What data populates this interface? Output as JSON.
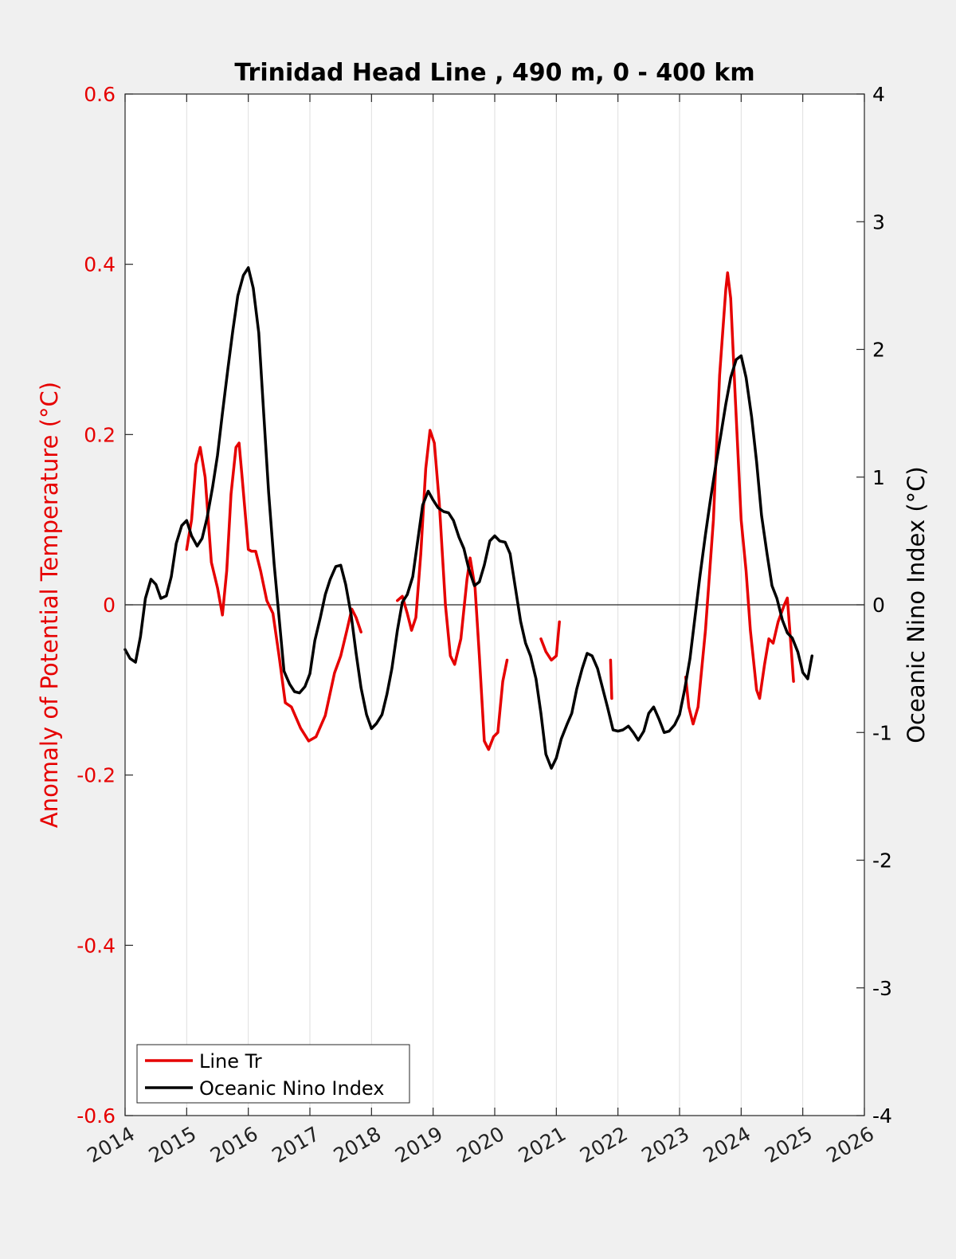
{
  "chart_data": {
    "type": "line",
    "title": "Trinidad Head Line , 490 m, 0 - 400 km",
    "xlabel": "",
    "xlim": [
      2014,
      2026
    ],
    "x_ticks": [
      "2014",
      "2015",
      "2016",
      "2017",
      "2018",
      "2019",
      "2020",
      "2021",
      "2022",
      "2023",
      "2024",
      "2025",
      "2026"
    ],
    "y_left": {
      "label": "Anomaly of Potential Temperature (°C)",
      "lim": [
        -0.6,
        0.6
      ],
      "ticks": [
        "0.6",
        "0.4",
        "0.2",
        "0",
        "-0.2",
        "-0.4",
        "-0.6"
      ],
      "color": "#e60000"
    },
    "y_right": {
      "label": "Oceanic Nino Index (°C)",
      "lim": [
        -4,
        4
      ],
      "ticks": [
        "4",
        "3",
        "2",
        "1",
        "0",
        "-1",
        "-2",
        "-3",
        "-4"
      ],
      "color": "#000000"
    },
    "grid": "vertical",
    "zero_line": true,
    "legend": {
      "placement": "bottom-left",
      "entries": [
        "Line Tr",
        "Oceanic Nino Index"
      ]
    },
    "series": [
      {
        "name": "Line Tr",
        "axis": "left",
        "color": "#e60000",
        "segments": [
          [
            [
              2015.0,
              0.065
            ],
            [
              2015.08,
              0.1
            ],
            [
              2015.15,
              0.165
            ],
            [
              2015.22,
              0.185
            ],
            [
              2015.3,
              0.15
            ],
            [
              2015.4,
              0.05
            ],
            [
              2015.5,
              0.02
            ],
            [
              2015.58,
              -0.012
            ],
            [
              2015.65,
              0.04
            ],
            [
              2015.72,
              0.13
            ],
            [
              2015.8,
              0.185
            ],
            [
              2015.85,
              0.19
            ],
            [
              2015.9,
              0.15
            ],
            [
              2016.0,
              0.065
            ],
            [
              2016.05,
              0.063
            ],
            [
              2016.12,
              0.063
            ],
            [
              2016.2,
              0.04
            ],
            [
              2016.3,
              0.005
            ],
            [
              2016.4,
              -0.01
            ],
            [
              2016.5,
              -0.06
            ],
            [
              2016.6,
              -0.115
            ],
            [
              2016.7,
              -0.12
            ],
            [
              2016.85,
              -0.145
            ],
            [
              2016.98,
              -0.16
            ],
            [
              2017.1,
              -0.155
            ],
            [
              2017.25,
              -0.13
            ],
            [
              2017.4,
              -0.08
            ],
            [
              2017.5,
              -0.06
            ],
            [
              2017.6,
              -0.03
            ],
            [
              2017.68,
              -0.005
            ],
            [
              2017.75,
              -0.015
            ],
            [
              2017.83,
              -0.032
            ]
          ],
          [
            [
              2018.42,
              0.005
            ],
            [
              2018.5,
              0.01
            ],
            [
              2018.58,
              -0.01
            ],
            [
              2018.65,
              -0.03
            ],
            [
              2018.72,
              -0.015
            ],
            [
              2018.8,
              0.06
            ],
            [
              2018.88,
              0.16
            ],
            [
              2018.95,
              0.205
            ],
            [
              2019.02,
              0.19
            ],
            [
              2019.1,
              0.12
            ],
            [
              2019.2,
              0.0
            ],
            [
              2019.28,
              -0.06
            ],
            [
              2019.35,
              -0.07
            ],
            [
              2019.45,
              -0.04
            ],
            [
              2019.55,
              0.03
            ],
            [
              2019.6,
              0.055
            ],
            [
              2019.68,
              0.02
            ],
            [
              2019.75,
              -0.06
            ],
            [
              2019.83,
              -0.16
            ],
            [
              2019.9,
              -0.17
            ],
            [
              2019.98,
              -0.155
            ],
            [
              2020.05,
              -0.15
            ],
            [
              2020.13,
              -0.09
            ],
            [
              2020.2,
              -0.065
            ]
          ],
          [
            [
              2020.75,
              -0.04
            ],
            [
              2020.83,
              -0.055
            ],
            [
              2020.92,
              -0.065
            ],
            [
              2021.0,
              -0.06
            ],
            [
              2021.05,
              -0.02
            ]
          ],
          [
            [
              2021.88,
              -0.065
            ],
            [
              2021.9,
              -0.11
            ]
          ],
          [
            [
              2023.1,
              -0.085
            ],
            [
              2023.15,
              -0.12
            ],
            [
              2023.22,
              -0.14
            ],
            [
              2023.3,
              -0.12
            ],
            [
              2023.42,
              -0.03
            ],
            [
              2023.55,
              0.1
            ],
            [
              2023.65,
              0.27
            ],
            [
              2023.75,
              0.37
            ],
            [
              2023.78,
              0.39
            ],
            [
              2023.83,
              0.36
            ],
            [
              2023.9,
              0.25
            ],
            [
              2024.0,
              0.1
            ],
            [
              2024.08,
              0.04
            ],
            [
              2024.15,
              -0.03
            ],
            [
              2024.25,
              -0.1
            ],
            [
              2024.3,
              -0.11
            ],
            [
              2024.38,
              -0.07
            ],
            [
              2024.45,
              -0.04
            ],
            [
              2024.52,
              -0.045
            ],
            [
              2024.6,
              -0.02
            ],
            [
              2024.7,
              0.0
            ],
            [
              2024.75,
              0.008
            ],
            [
              2024.8,
              -0.04
            ],
            [
              2024.85,
              -0.09
            ]
          ]
        ]
      },
      {
        "name": "Oceanic Nino Index",
        "axis": "right",
        "color": "#000000",
        "segments": [
          [
            [
              2014.0,
              -0.35
            ],
            [
              2014.08,
              -0.42
            ],
            [
              2014.17,
              -0.45
            ],
            [
              2014.25,
              -0.25
            ],
            [
              2014.33,
              0.05
            ],
            [
              2014.42,
              0.2
            ],
            [
              2014.5,
              0.16
            ],
            [
              2014.58,
              0.05
            ],
            [
              2014.67,
              0.07
            ],
            [
              2014.75,
              0.22
            ],
            [
              2014.83,
              0.48
            ],
            [
              2014.92,
              0.62
            ],
            [
              2015.0,
              0.66
            ],
            [
              2015.08,
              0.54
            ],
            [
              2015.17,
              0.46
            ],
            [
              2015.25,
              0.52
            ],
            [
              2015.33,
              0.68
            ],
            [
              2015.42,
              0.92
            ],
            [
              2015.5,
              1.17
            ],
            [
              2015.58,
              1.5
            ],
            [
              2015.67,
              1.85
            ],
            [
              2015.75,
              2.15
            ],
            [
              2015.83,
              2.42
            ],
            [
              2015.92,
              2.58
            ],
            [
              2016.0,
              2.64
            ],
            [
              2016.08,
              2.48
            ],
            [
              2016.17,
              2.13
            ],
            [
              2016.25,
              1.5
            ],
            [
              2016.33,
              0.88
            ],
            [
              2016.42,
              0.32
            ],
            [
              2016.5,
              -0.1
            ],
            [
              2016.58,
              -0.52
            ],
            [
              2016.67,
              -0.62
            ],
            [
              2016.75,
              -0.68
            ],
            [
              2016.83,
              -0.69
            ],
            [
              2016.92,
              -0.64
            ],
            [
              2017.0,
              -0.54
            ],
            [
              2017.08,
              -0.28
            ],
            [
              2017.17,
              -0.1
            ],
            [
              2017.25,
              0.08
            ],
            [
              2017.33,
              0.2
            ],
            [
              2017.42,
              0.3
            ],
            [
              2017.5,
              0.31
            ],
            [
              2017.58,
              0.16
            ],
            [
              2017.67,
              -0.08
            ],
            [
              2017.75,
              -0.38
            ],
            [
              2017.83,
              -0.65
            ],
            [
              2017.92,
              -0.86
            ],
            [
              2018.0,
              -0.97
            ],
            [
              2018.08,
              -0.93
            ],
            [
              2018.17,
              -0.86
            ],
            [
              2018.25,
              -0.7
            ],
            [
              2018.33,
              -0.5
            ],
            [
              2018.42,
              -0.2
            ],
            [
              2018.5,
              0.02
            ],
            [
              2018.58,
              0.08
            ],
            [
              2018.67,
              0.22
            ],
            [
              2018.75,
              0.5
            ],
            [
              2018.83,
              0.78
            ],
            [
              2018.92,
              0.89
            ],
            [
              2019.0,
              0.82
            ],
            [
              2019.08,
              0.76
            ],
            [
              2019.17,
              0.73
            ],
            [
              2019.25,
              0.72
            ],
            [
              2019.33,
              0.66
            ],
            [
              2019.42,
              0.53
            ],
            [
              2019.5,
              0.44
            ],
            [
              2019.58,
              0.28
            ],
            [
              2019.67,
              0.15
            ],
            [
              2019.75,
              0.18
            ],
            [
              2019.83,
              0.31
            ],
            [
              2019.92,
              0.5
            ],
            [
              2020.0,
              0.54
            ],
            [
              2020.08,
              0.5
            ],
            [
              2020.17,
              0.49
            ],
            [
              2020.25,
              0.4
            ],
            [
              2020.33,
              0.15
            ],
            [
              2020.42,
              -0.13
            ],
            [
              2020.5,
              -0.3
            ],
            [
              2020.58,
              -0.4
            ],
            [
              2020.67,
              -0.58
            ],
            [
              2020.75,
              -0.85
            ],
            [
              2020.83,
              -1.17
            ],
            [
              2020.92,
              -1.28
            ],
            [
              2021.0,
              -1.2
            ],
            [
              2021.08,
              -1.05
            ],
            [
              2021.17,
              -0.94
            ],
            [
              2021.25,
              -0.85
            ],
            [
              2021.33,
              -0.66
            ],
            [
              2021.42,
              -0.5
            ],
            [
              2021.5,
              -0.38
            ],
            [
              2021.58,
              -0.4
            ],
            [
              2021.67,
              -0.5
            ],
            [
              2021.75,
              -0.65
            ],
            [
              2021.83,
              -0.8
            ],
            [
              2021.92,
              -0.98
            ],
            [
              2022.0,
              -0.99
            ],
            [
              2022.08,
              -0.98
            ],
            [
              2022.17,
              -0.95
            ],
            [
              2022.25,
              -1.0
            ],
            [
              2022.33,
              -1.06
            ],
            [
              2022.42,
              -0.99
            ],
            [
              2022.5,
              -0.85
            ],
            [
              2022.58,
              -0.8
            ],
            [
              2022.67,
              -0.9
            ],
            [
              2022.75,
              -1.0
            ],
            [
              2022.83,
              -0.99
            ],
            [
              2022.92,
              -0.94
            ],
            [
              2023.0,
              -0.86
            ],
            [
              2023.08,
              -0.67
            ],
            [
              2023.17,
              -0.42
            ],
            [
              2023.25,
              -0.1
            ],
            [
              2023.33,
              0.22
            ],
            [
              2023.42,
              0.55
            ],
            [
              2023.5,
              0.82
            ],
            [
              2023.58,
              1.07
            ],
            [
              2023.67,
              1.33
            ],
            [
              2023.75,
              1.57
            ],
            [
              2023.83,
              1.78
            ],
            [
              2023.92,
              1.92
            ],
            [
              2024.0,
              1.95
            ],
            [
              2024.08,
              1.78
            ],
            [
              2024.17,
              1.47
            ],
            [
              2024.25,
              1.12
            ],
            [
              2024.33,
              0.7
            ],
            [
              2024.42,
              0.4
            ],
            [
              2024.5,
              0.15
            ],
            [
              2024.58,
              0.05
            ],
            [
              2024.67,
              -0.12
            ],
            [
              2024.75,
              -0.22
            ],
            [
              2024.83,
              -0.26
            ],
            [
              2024.92,
              -0.37
            ],
            [
              2025.0,
              -0.53
            ],
            [
              2025.08,
              -0.58
            ],
            [
              2025.15,
              -0.4
            ]
          ]
        ]
      }
    ]
  }
}
